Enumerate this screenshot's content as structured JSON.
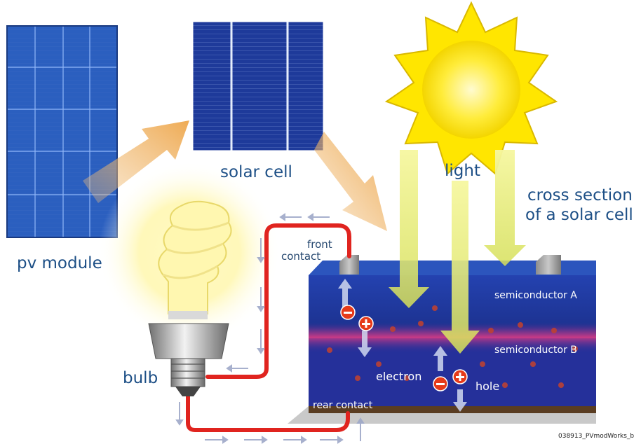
{
  "labels": {
    "pv_module": "pv module",
    "solar_cell": "solar cell",
    "light": "light",
    "cross_section_line1": "cross section",
    "cross_section_line2": "of a solar cell",
    "front_contact_line1": "front",
    "front_contact_line2": "contact",
    "semiconductor_a": "semiconductor A",
    "semiconductor_b": "semiconductor B",
    "electron": "electron",
    "hole": "hole",
    "bulb": "bulb",
    "rear_contact": "rear contact",
    "image_code": "038913_PVmodWorks_b"
  },
  "symbols": {
    "minus": "−",
    "plus": "+"
  },
  "colors": {
    "label_blue": "#1d4f86",
    "wire_red": "#e0241f",
    "cell_blue": "#1a2f8f",
    "junction_magenta": "#c0367a",
    "rear_contact_brown": "#5a3d22",
    "sun_yellow": "#ffe600",
    "arrow_orange": "#f0b060"
  }
}
